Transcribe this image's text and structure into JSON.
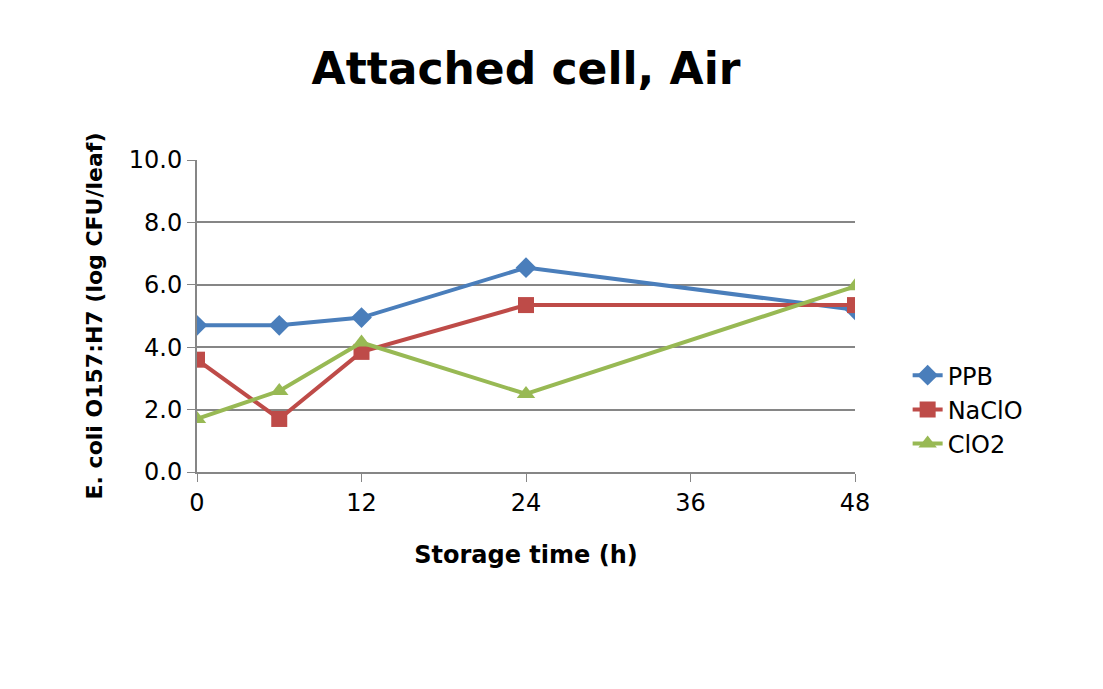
{
  "chart_data": {
    "type": "line",
    "title": "Attached cell, Air",
    "x_label": "Storage time (h)",
    "y_label": "E. coli O157:H7 (log CFU/leaf)",
    "x": [
      0,
      6,
      12,
      24,
      48
    ],
    "series": [
      {
        "name": "PPB",
        "color": "#4a7ebb",
        "marker": "diamond",
        "values": [
          4.7,
          4.7,
          4.95,
          6.55,
          5.2
        ]
      },
      {
        "name": "NaClO",
        "color": "#be4b48",
        "marker": "square",
        "values": [
          3.6,
          1.7,
          3.85,
          5.35,
          5.35
        ]
      },
      {
        "name": "ClO2",
        "color": "#98b954",
        "marker": "triangle",
        "values": [
          1.7,
          2.6,
          4.15,
          2.5,
          5.95
        ]
      }
    ],
    "xlim": [
      0,
      48
    ],
    "xticks": [
      0,
      12,
      24,
      36,
      48
    ],
    "ylim": [
      0,
      10
    ],
    "yticks": [
      {
        "value": 0,
        "label": "0.0"
      },
      {
        "value": 2,
        "label": "2.0"
      },
      {
        "value": 4,
        "label": "4.0"
      },
      {
        "value": 6,
        "label": "6.0"
      },
      {
        "value": 8,
        "label": "8.0"
      },
      {
        "value": 10,
        "label": "10.0"
      }
    ],
    "grid": true,
    "legend": "right"
  }
}
